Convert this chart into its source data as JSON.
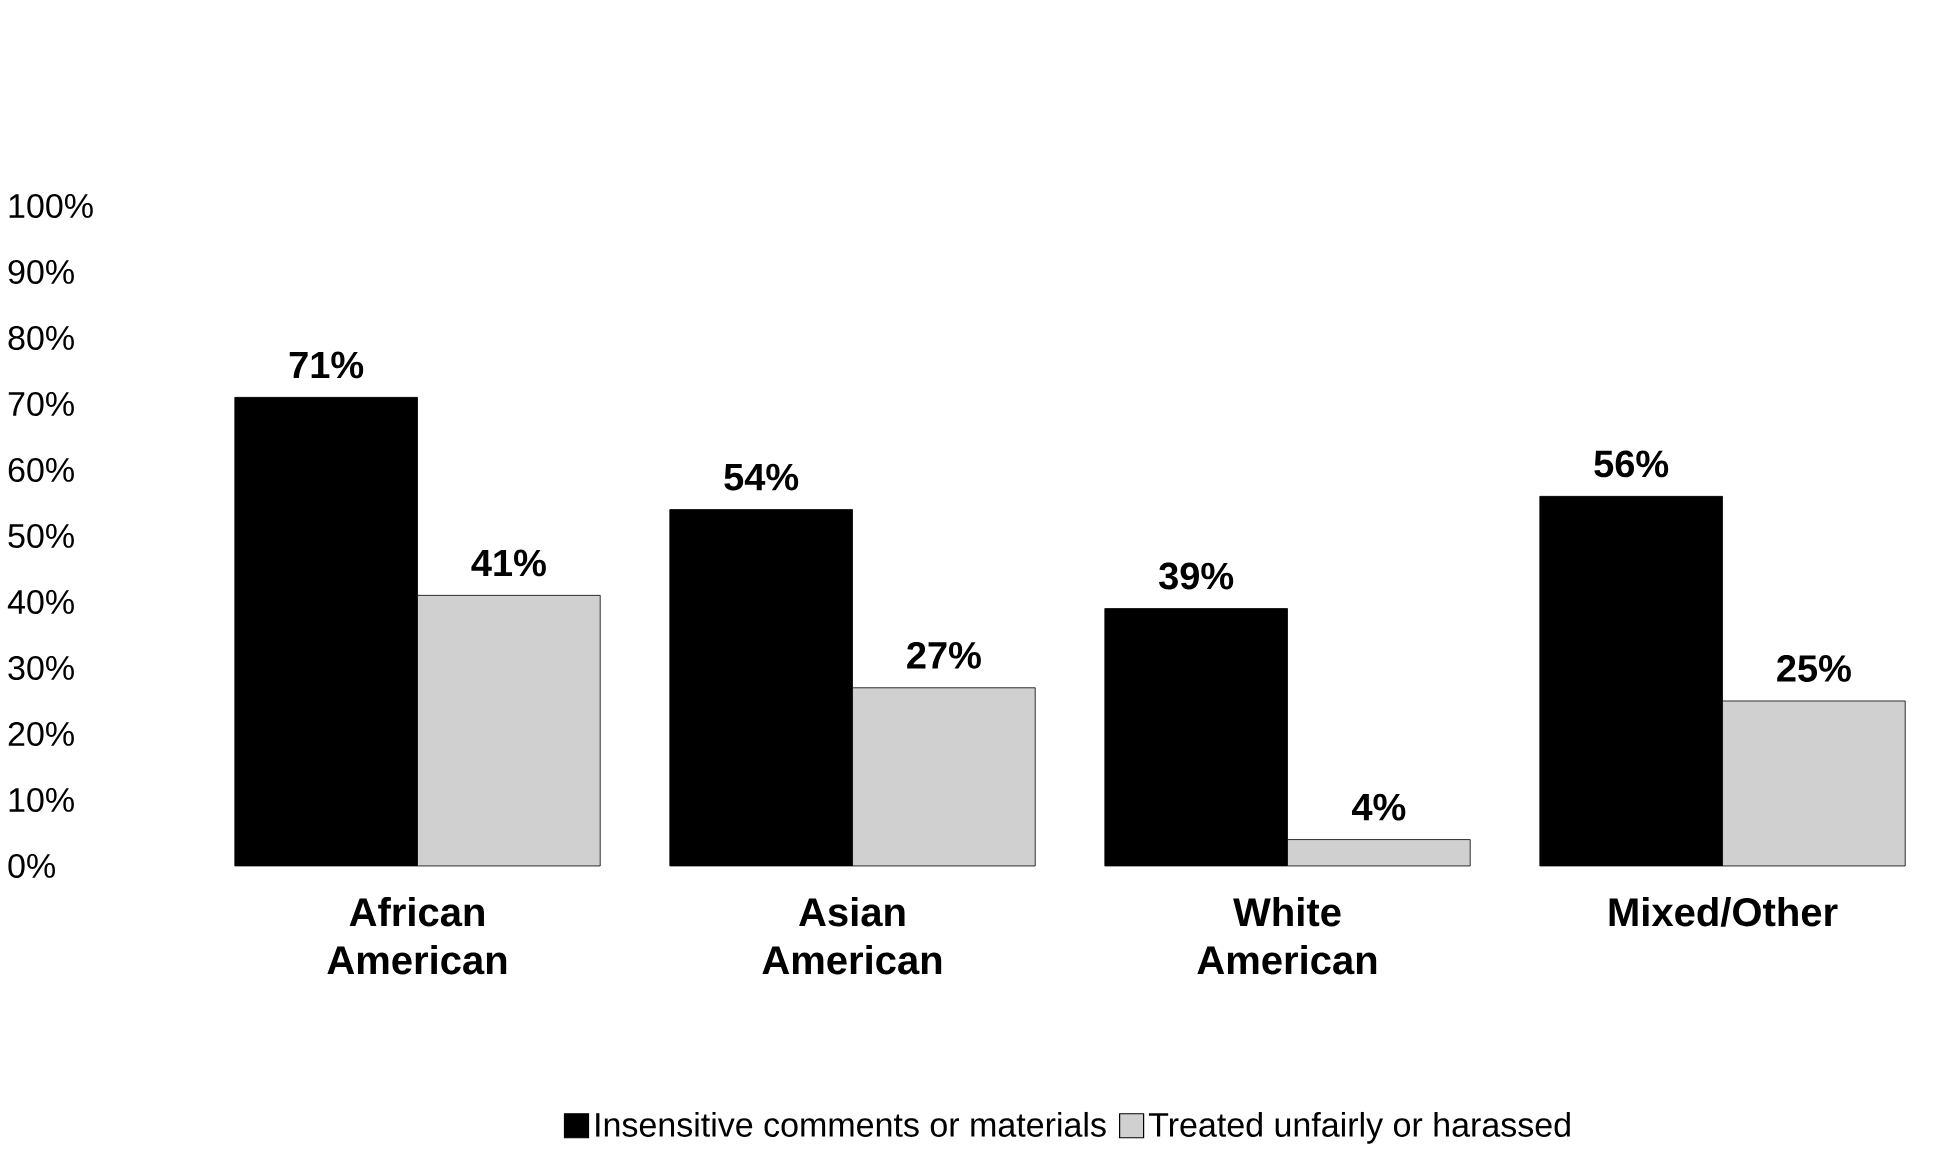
{
  "chart_data": {
    "type": "bar",
    "categories": [
      "African American",
      "Asian American",
      "White American",
      "Mixed/Other"
    ],
    "series": [
      {
        "name": "Insensitive comments or materials",
        "color": "#000000",
        "values": [
          71,
          54,
          39,
          56
        ],
        "value_labels": [
          "71%",
          "54%",
          "39%",
          "56%"
        ]
      },
      {
        "name": "Treated unfairly or harassed",
        "color": "#d0d0d0",
        "values": [
          41,
          27,
          4,
          25
        ],
        "value_labels": [
          "41%",
          "27%",
          "4%",
          "25%"
        ]
      }
    ],
    "ylim": [
      0,
      100
    ],
    "yticks": [
      {
        "value": 0,
        "label": "0%"
      },
      {
        "value": 10,
        "label": "10%"
      },
      {
        "value": 20,
        "label": "20%"
      },
      {
        "value": 30,
        "label": "30%"
      },
      {
        "value": 40,
        "label": "40%"
      },
      {
        "value": 50,
        "label": "50%"
      },
      {
        "value": 60,
        "label": "60%"
      },
      {
        "value": 70,
        "label": "70%"
      },
      {
        "value": 80,
        "label": "80%"
      },
      {
        "value": 90,
        "label": "90%"
      },
      {
        "value": 100,
        "label": "100%"
      }
    ],
    "grid": false,
    "legend": "bottom"
  }
}
